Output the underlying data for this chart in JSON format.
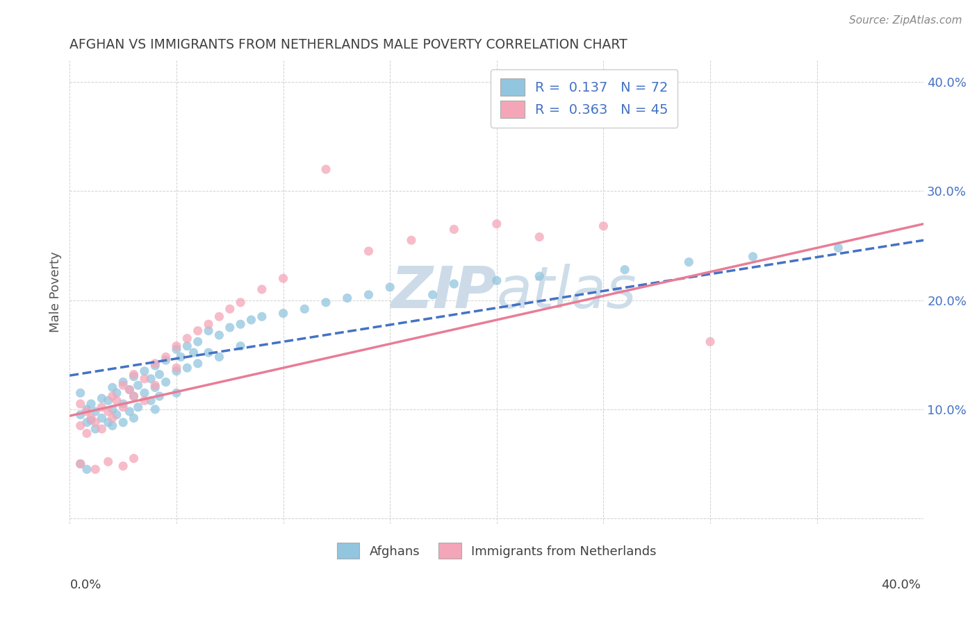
{
  "title": "AFGHAN VS IMMIGRANTS FROM NETHERLANDS MALE POVERTY CORRELATION CHART",
  "source": "Source: ZipAtlas.com",
  "ylabel": "Male Poverty",
  "x_lim": [
    0.0,
    0.4
  ],
  "y_lim": [
    -0.005,
    0.42
  ],
  "afghan_color": "#92c5de",
  "netherlands_color": "#f4a6b8",
  "afghan_line_color": "#4472c4",
  "netherlands_line_color": "#e87d96",
  "background_color": "#ffffff",
  "grid_color": "#cccccc",
  "title_color": "#404040",
  "source_color": "#888888",
  "watermark_color": "#cddbe8",
  "legend_text_color": "#4472c4",
  "ytick_color": "#4472c4",
  "afghan_scatter_x": [
    0.005,
    0.005,
    0.008,
    0.008,
    0.01,
    0.01,
    0.012,
    0.012,
    0.015,
    0.015,
    0.018,
    0.018,
    0.02,
    0.02,
    0.02,
    0.022,
    0.022,
    0.025,
    0.025,
    0.025,
    0.028,
    0.028,
    0.03,
    0.03,
    0.03,
    0.032,
    0.032,
    0.035,
    0.035,
    0.038,
    0.038,
    0.04,
    0.04,
    0.04,
    0.042,
    0.042,
    0.045,
    0.045,
    0.05,
    0.05,
    0.05,
    0.052,
    0.055,
    0.055,
    0.058,
    0.06,
    0.06,
    0.065,
    0.065,
    0.07,
    0.07,
    0.075,
    0.08,
    0.08,
    0.085,
    0.09,
    0.1,
    0.11,
    0.12,
    0.13,
    0.14,
    0.15,
    0.17,
    0.18,
    0.2,
    0.22,
    0.26,
    0.29,
    0.32,
    0.36,
    0.005,
    0.008
  ],
  "afghan_scatter_y": [
    0.115,
    0.095,
    0.1,
    0.088,
    0.105,
    0.09,
    0.098,
    0.082,
    0.11,
    0.092,
    0.108,
    0.088,
    0.12,
    0.1,
    0.085,
    0.115,
    0.095,
    0.125,
    0.105,
    0.088,
    0.118,
    0.098,
    0.13,
    0.112,
    0.092,
    0.122,
    0.102,
    0.135,
    0.115,
    0.128,
    0.108,
    0.14,
    0.12,
    0.1,
    0.132,
    0.112,
    0.145,
    0.125,
    0.155,
    0.135,
    0.115,
    0.148,
    0.158,
    0.138,
    0.152,
    0.162,
    0.142,
    0.172,
    0.152,
    0.168,
    0.148,
    0.175,
    0.178,
    0.158,
    0.182,
    0.185,
    0.188,
    0.192,
    0.198,
    0.202,
    0.205,
    0.212,
    0.205,
    0.215,
    0.218,
    0.222,
    0.228,
    0.235,
    0.24,
    0.248,
    0.05,
    0.045
  ],
  "netherlands_scatter_x": [
    0.005,
    0.005,
    0.008,
    0.008,
    0.01,
    0.012,
    0.015,
    0.015,
    0.018,
    0.02,
    0.02,
    0.022,
    0.025,
    0.025,
    0.028,
    0.03,
    0.03,
    0.035,
    0.035,
    0.04,
    0.04,
    0.045,
    0.05,
    0.05,
    0.055,
    0.06,
    0.065,
    0.07,
    0.075,
    0.08,
    0.09,
    0.1,
    0.12,
    0.14,
    0.16,
    0.18,
    0.2,
    0.22,
    0.25,
    0.3,
    0.005,
    0.012,
    0.018,
    0.025,
    0.03
  ],
  "netherlands_scatter_y": [
    0.105,
    0.085,
    0.098,
    0.078,
    0.092,
    0.088,
    0.102,
    0.082,
    0.098,
    0.112,
    0.092,
    0.108,
    0.122,
    0.102,
    0.118,
    0.132,
    0.112,
    0.128,
    0.108,
    0.142,
    0.122,
    0.148,
    0.158,
    0.138,
    0.165,
    0.172,
    0.178,
    0.185,
    0.192,
    0.198,
    0.21,
    0.22,
    0.32,
    0.245,
    0.255,
    0.265,
    0.27,
    0.258,
    0.268,
    0.162,
    0.05,
    0.045,
    0.052,
    0.048,
    0.055
  ],
  "afghan_line_x0": 0.0,
  "afghan_line_y0": 0.131,
  "afghan_line_x1": 0.4,
  "afghan_line_y1": 0.255,
  "netherlands_line_x0": 0.0,
  "netherlands_line_y0": 0.094,
  "netherlands_line_x1": 0.4,
  "netherlands_line_y1": 0.27
}
